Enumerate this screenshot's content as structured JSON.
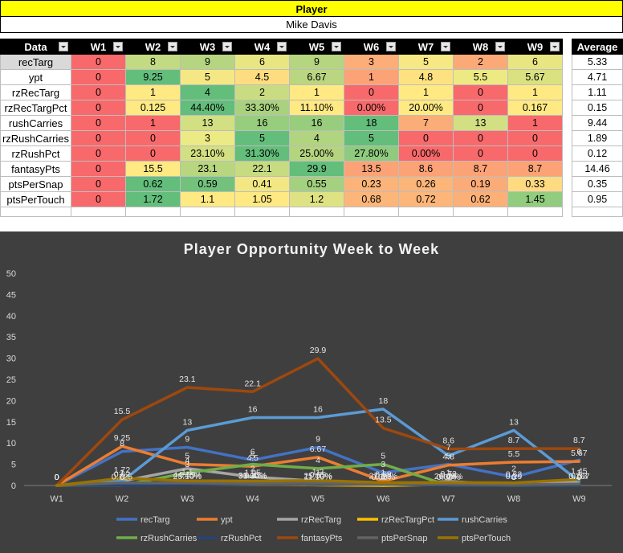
{
  "header": {
    "title": "Player",
    "player": "Mike Davis"
  },
  "table": {
    "corner": "Data",
    "weeks": [
      "W1",
      "W2",
      "W3",
      "W4",
      "W5",
      "W6",
      "W7",
      "W8",
      "W9"
    ],
    "avg_header": "Average",
    "rows": [
      {
        "label": "recTarg",
        "cells": [
          "0",
          "8",
          "9",
          "6",
          "9",
          "3",
          "5",
          "2",
          "6"
        ],
        "avg": "5.33"
      },
      {
        "label": "ypt",
        "cells": [
          "0",
          "9.25",
          "5",
          "4.5",
          "6.67",
          "1",
          "4.8",
          "5.5",
          "5.67"
        ],
        "avg": "4.71"
      },
      {
        "label": "rzRecTarg",
        "cells": [
          "0",
          "1",
          "4",
          "2",
          "1",
          "0",
          "1",
          "0",
          "1"
        ],
        "avg": "1.11"
      },
      {
        "label": "rzRecTargPct",
        "cells": [
          "0",
          "0.125",
          "44.40%",
          "33.30%",
          "11.10%",
          "0.00%",
          "20.00%",
          "0",
          "0.167"
        ],
        "avg": "0.15"
      },
      {
        "label": "rushCarries",
        "cells": [
          "0",
          "1",
          "13",
          "16",
          "16",
          "18",
          "7",
          "13",
          "1"
        ],
        "avg": "9.44"
      },
      {
        "label": "rzRushCarries",
        "cells": [
          "0",
          "0",
          "3",
          "5",
          "4",
          "5",
          "0",
          "0",
          "0"
        ],
        "avg": "1.89"
      },
      {
        "label": "rzRushPct",
        "cells": [
          "0",
          "0",
          "23.10%",
          "31.30%",
          "25.00%",
          "27.80%",
          "0.00%",
          "0",
          "0"
        ],
        "avg": "0.12"
      },
      {
        "label": "fantasyPts",
        "cells": [
          "0",
          "15.5",
          "23.1",
          "22.1",
          "29.9",
          "13.5",
          "8.6",
          "8.7",
          "8.7"
        ],
        "avg": "14.46"
      },
      {
        "label": "ptsPerSnap",
        "cells": [
          "0",
          "0.62",
          "0.59",
          "0.41",
          "0.55",
          "0.23",
          "0.26",
          "0.19",
          "0.33"
        ],
        "avg": "0.35"
      },
      {
        "label": "ptsPerTouch",
        "cells": [
          "0",
          "1.72",
          "1.1",
          "1.05",
          "1.2",
          "0.68",
          "0.72",
          "0.62",
          "1.45"
        ],
        "avg": "0.95"
      }
    ],
    "cell_colors": [
      [
        "#f8696b",
        "#c2da81",
        "#b5d580",
        "#e8e583",
        "#b5d580",
        "#fcad78",
        "#f6e884",
        "#fbaa77",
        "#e8e583"
      ],
      [
        "#f8696b",
        "#63be7b",
        "#f5e884",
        "#fedd81",
        "#bad680",
        "#fba276",
        "#fee282",
        "#edea84",
        "#dae181"
      ],
      [
        "#f8696b",
        "#fee983",
        "#63be7b",
        "#c9dc81",
        "#fee983",
        "#f8696b",
        "#fee983",
        "#f8696b",
        "#fee983"
      ],
      [
        "#f8696b",
        "#fee983",
        "#63be7b",
        "#a9d27f",
        "#fee983",
        "#f8696b",
        "#fee983",
        "#f8696b",
        "#fee983"
      ],
      [
        "#f8696b",
        "#f8696b",
        "#d2df82",
        "#98cd7e",
        "#98cd7e",
        "#63be7b",
        "#fbad77",
        "#d2df82",
        "#f8696b"
      ],
      [
        "#f8696b",
        "#f8696b",
        "#ecea84",
        "#63be7b",
        "#b1d480",
        "#63be7b",
        "#f8696b",
        "#f8696b",
        "#f8696b"
      ],
      [
        "#f8696b",
        "#f8696b",
        "#d2df82",
        "#63be7b",
        "#b4d480",
        "#8fcb7e",
        "#f8696b",
        "#f8696b",
        "#f8696b"
      ],
      [
        "#f8696b",
        "#fee983",
        "#b8d680",
        "#c7db81",
        "#63be7b",
        "#fba376",
        "#fba276",
        "#fba376",
        "#fba376"
      ],
      [
        "#f8696b",
        "#63be7b",
        "#72c27c",
        "#f2e783",
        "#a4d17f",
        "#fcb379",
        "#fcb579",
        "#fbab77",
        "#feda81"
      ],
      [
        "#f8696b",
        "#63be7b",
        "#fee983",
        "#fee983",
        "#dfe283",
        "#fcb679",
        "#fcb679",
        "#fbb077",
        "#92cc7e"
      ]
    ]
  },
  "chart_data": {
    "type": "line",
    "title": "Player Opportunity  Week to Week",
    "categories": [
      "W1",
      "W2",
      "W3",
      "W4",
      "W5",
      "W6",
      "W7",
      "W8",
      "W9"
    ],
    "ylim": [
      0,
      50
    ],
    "yticks": [
      0,
      5,
      10,
      15,
      20,
      25,
      30,
      35,
      40,
      45,
      50
    ],
    "grid": false,
    "legend_position": "bottom",
    "series": [
      {
        "name": "recTarg",
        "color": "#4472c4",
        "values": [
          0,
          8,
          9,
          6,
          9,
          3,
          5,
          2,
          6
        ],
        "labels": [
          "0",
          "8",
          "9",
          "6",
          "9",
          "3",
          "5",
          "2",
          "6"
        ]
      },
      {
        "name": "ypt",
        "color": "#ed7d31",
        "values": [
          0,
          9.25,
          5,
          4.5,
          6.67,
          1,
          4.8,
          5.5,
          5.67
        ],
        "labels": [
          "0",
          "9.25",
          "5",
          "4.5",
          "6.67",
          "1",
          "4.8",
          "5.5",
          "5.67"
        ]
      },
      {
        "name": "rzRecTarg",
        "color": "#a5a5a5",
        "values": [
          0,
          1,
          4,
          2,
          1,
          0,
          1,
          0,
          1
        ],
        "labels": [
          "0",
          "1",
          "4",
          "2",
          "1",
          "0",
          "1",
          "0",
          "1"
        ]
      },
      {
        "name": "rzRecTargPct",
        "color": "#ffc000",
        "values": [
          0,
          0.125,
          0.444,
          0.333,
          0.111,
          0,
          0.2,
          0,
          0.167
        ],
        "labels": [
          "0",
          "0.125",
          "44.40%",
          "33.30%",
          "11.10%",
          "0.00%",
          "20.00%",
          "0",
          "0.167"
        ]
      },
      {
        "name": "rushCarries",
        "color": "#5b9bd5",
        "values": [
          0,
          1,
          13,
          16,
          16,
          18,
          7,
          13,
          1
        ],
        "labels": [
          "0",
          "1",
          "13",
          "16",
          "16",
          "18",
          "7",
          "13",
          "1"
        ]
      },
      {
        "name": "rzRushCarries",
        "color": "#70ad47",
        "values": [
          0,
          0,
          3,
          5,
          4,
          5,
          0,
          0,
          0
        ],
        "labels": [
          "0",
          "0",
          "3",
          "5",
          "4",
          "5",
          "0",
          "0",
          "0"
        ]
      },
      {
        "name": "rzRushPct",
        "color": "#264478",
        "values": [
          0,
          0,
          0.231,
          0.313,
          0.25,
          0.278,
          0,
          0,
          0
        ],
        "labels": [
          "0",
          "0",
          "23.10%",
          "31.30%",
          "25.00%",
          "27.80%",
          "0.00%",
          "0",
          "0"
        ]
      },
      {
        "name": "fantasyPts",
        "color": "#9e480e",
        "values": [
          0,
          15.5,
          23.1,
          22.1,
          29.9,
          13.5,
          8.6,
          8.7,
          8.7
        ],
        "labels": [
          "0",
          "15.5",
          "23.1",
          "22.1",
          "29.9",
          "13.5",
          "8.6",
          "8.7",
          "8.7"
        ]
      },
      {
        "name": "ptsPerSnap",
        "color": "#636363",
        "values": [
          0,
          0.62,
          0.59,
          0.41,
          0.55,
          0.23,
          0.26,
          0.19,
          0.33
        ],
        "labels": [
          "0",
          "0.62",
          "0.59",
          "0.41",
          "0.55",
          "0.23",
          "0.26",
          "0.19",
          "0.33"
        ]
      },
      {
        "name": "ptsPerTouch",
        "color": "#997300",
        "values": [
          0,
          1.72,
          1.1,
          1.05,
          1.2,
          0.68,
          0.72,
          0.62,
          1.45
        ],
        "labels": [
          "0",
          "1.72",
          "1.1",
          "1.05",
          "1.2",
          "0.68",
          "0.72",
          "0.62",
          "1.45"
        ]
      }
    ]
  }
}
